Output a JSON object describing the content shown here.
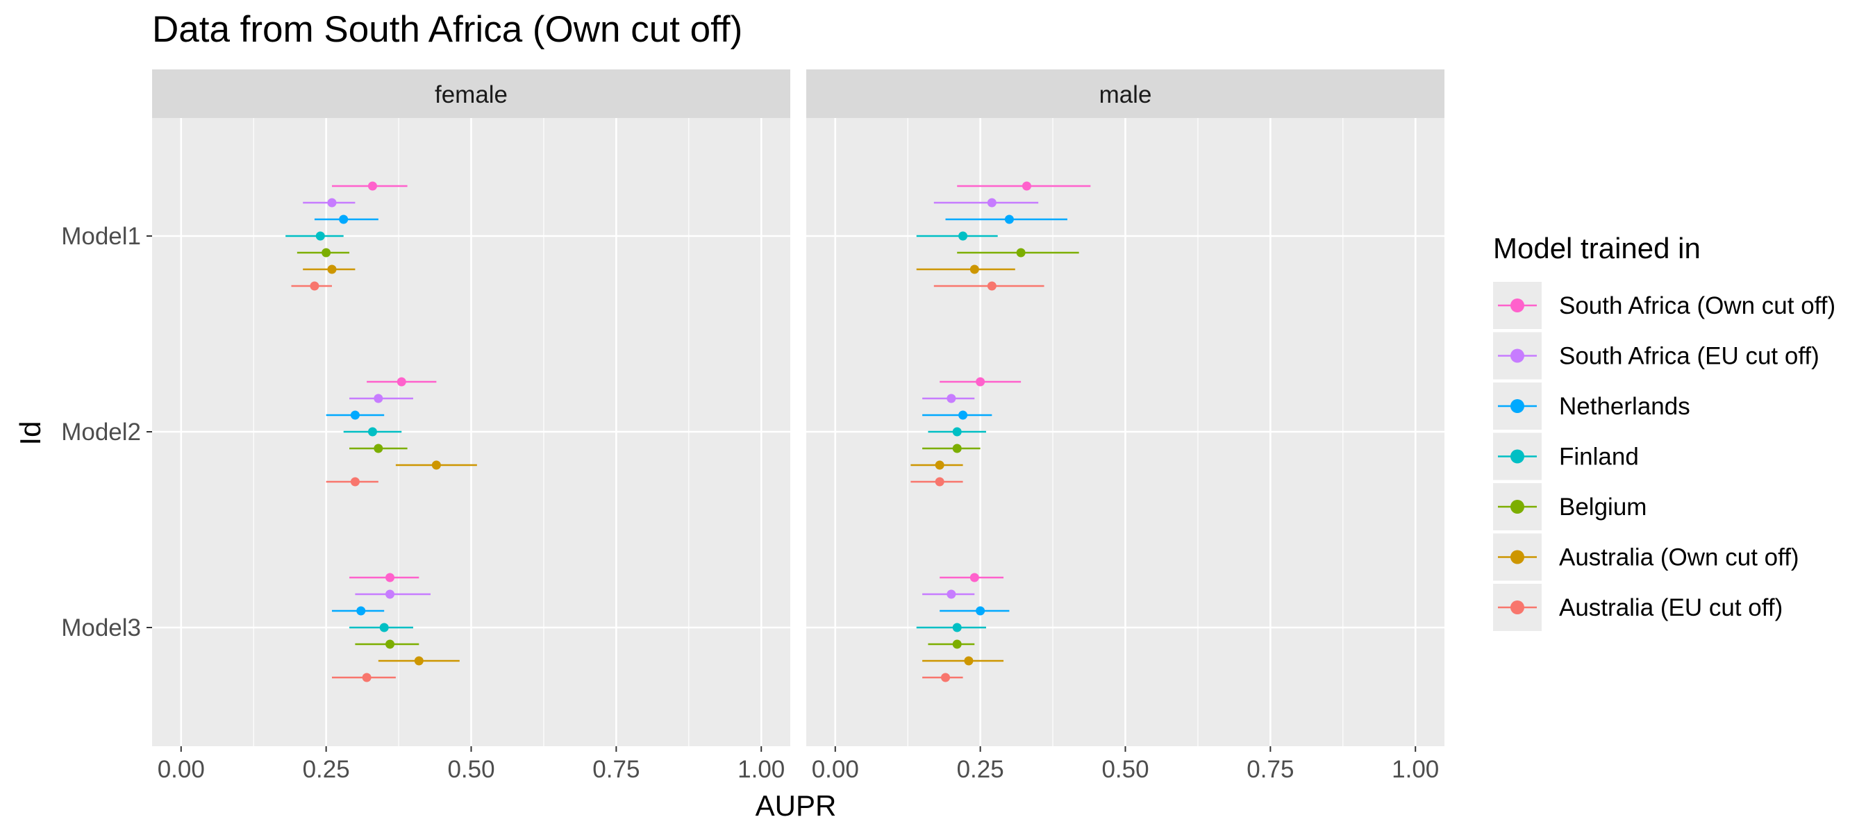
{
  "chart_data": {
    "type": "scatter",
    "subtype": "dot-and-whisker (point estimate with interval), faceted",
    "title": "Data from South Africa (Own cut off)",
    "xlabel": "AUPR",
    "ylabel": "Id",
    "xlim": [
      0,
      1
    ],
    "x_ticks": [
      "0.00",
      "0.25",
      "0.50",
      "0.75",
      "1.00"
    ],
    "y_categories": [
      "Model1",
      "Model2",
      "Model3"
    ],
    "facets": [
      "female",
      "male"
    ],
    "grid": true,
    "legend": {
      "title": "Model trained in",
      "placement": "right",
      "entries": [
        "South Africa (Own cut off)",
        "South Africa (EU cut off)",
        "Netherlands",
        "Finland",
        "Belgium",
        "Australia (Own cut off)",
        "Australia (EU cut off)"
      ]
    },
    "series": [
      {
        "name": "South Africa (Own cut off)",
        "color": "#FF61CC",
        "points": [
          {
            "facet": "female",
            "model": "Model1",
            "x": 0.33,
            "low": 0.26,
            "high": 0.39
          },
          {
            "facet": "female",
            "model": "Model2",
            "x": 0.38,
            "low": 0.32,
            "high": 0.44
          },
          {
            "facet": "female",
            "model": "Model3",
            "x": 0.36,
            "low": 0.29,
            "high": 0.41
          },
          {
            "facet": "male",
            "model": "Model1",
            "x": 0.33,
            "low": 0.21,
            "high": 0.44
          },
          {
            "facet": "male",
            "model": "Model2",
            "x": 0.25,
            "low": 0.18,
            "high": 0.32
          },
          {
            "facet": "male",
            "model": "Model3",
            "x": 0.24,
            "low": 0.18,
            "high": 0.29
          }
        ]
      },
      {
        "name": "South Africa (EU cut off)",
        "color": "#C77CFF",
        "points": [
          {
            "facet": "female",
            "model": "Model1",
            "x": 0.26,
            "low": 0.21,
            "high": 0.3
          },
          {
            "facet": "female",
            "model": "Model2",
            "x": 0.34,
            "low": 0.29,
            "high": 0.4
          },
          {
            "facet": "female",
            "model": "Model3",
            "x": 0.36,
            "low": 0.3,
            "high": 0.43
          },
          {
            "facet": "male",
            "model": "Model1",
            "x": 0.27,
            "low": 0.17,
            "high": 0.35
          },
          {
            "facet": "male",
            "model": "Model2",
            "x": 0.2,
            "low": 0.15,
            "high": 0.24
          },
          {
            "facet": "male",
            "model": "Model3",
            "x": 0.2,
            "low": 0.15,
            "high": 0.24
          }
        ]
      },
      {
        "name": "Netherlands",
        "color": "#00A9FF",
        "points": [
          {
            "facet": "female",
            "model": "Model1",
            "x": 0.28,
            "low": 0.23,
            "high": 0.34
          },
          {
            "facet": "female",
            "model": "Model2",
            "x": 0.3,
            "low": 0.25,
            "high": 0.35
          },
          {
            "facet": "female",
            "model": "Model3",
            "x": 0.31,
            "low": 0.26,
            "high": 0.35
          },
          {
            "facet": "male",
            "model": "Model1",
            "x": 0.3,
            "low": 0.19,
            "high": 0.4
          },
          {
            "facet": "male",
            "model": "Model2",
            "x": 0.22,
            "low": 0.15,
            "high": 0.27
          },
          {
            "facet": "male",
            "model": "Model3",
            "x": 0.25,
            "low": 0.18,
            "high": 0.3
          }
        ]
      },
      {
        "name": "Finland",
        "color": "#00BFC4",
        "points": [
          {
            "facet": "female",
            "model": "Model1",
            "x": 0.24,
            "low": 0.18,
            "high": 0.28
          },
          {
            "facet": "female",
            "model": "Model2",
            "x": 0.33,
            "low": 0.28,
            "high": 0.38
          },
          {
            "facet": "female",
            "model": "Model3",
            "x": 0.35,
            "low": 0.29,
            "high": 0.4
          },
          {
            "facet": "male",
            "model": "Model1",
            "x": 0.22,
            "low": 0.14,
            "high": 0.28
          },
          {
            "facet": "male",
            "model": "Model2",
            "x": 0.21,
            "low": 0.16,
            "high": 0.26
          },
          {
            "facet": "male",
            "model": "Model3",
            "x": 0.21,
            "low": 0.14,
            "high": 0.26
          }
        ]
      },
      {
        "name": "Belgium",
        "color": "#7CAE00",
        "points": [
          {
            "facet": "female",
            "model": "Model1",
            "x": 0.25,
            "low": 0.2,
            "high": 0.29
          },
          {
            "facet": "female",
            "model": "Model2",
            "x": 0.34,
            "low": 0.29,
            "high": 0.39
          },
          {
            "facet": "female",
            "model": "Model3",
            "x": 0.36,
            "low": 0.3,
            "high": 0.41
          },
          {
            "facet": "male",
            "model": "Model1",
            "x": 0.32,
            "low": 0.21,
            "high": 0.42
          },
          {
            "facet": "male",
            "model": "Model2",
            "x": 0.21,
            "low": 0.15,
            "high": 0.25
          },
          {
            "facet": "male",
            "model": "Model3",
            "x": 0.21,
            "low": 0.16,
            "high": 0.24
          }
        ]
      },
      {
        "name": "Australia (Own cut off)",
        "color": "#CD9600",
        "points": [
          {
            "facet": "female",
            "model": "Model1",
            "x": 0.26,
            "low": 0.21,
            "high": 0.3
          },
          {
            "facet": "female",
            "model": "Model2",
            "x": 0.44,
            "low": 0.37,
            "high": 0.51
          },
          {
            "facet": "female",
            "model": "Model3",
            "x": 0.41,
            "low": 0.34,
            "high": 0.48
          },
          {
            "facet": "male",
            "model": "Model1",
            "x": 0.24,
            "low": 0.14,
            "high": 0.31
          },
          {
            "facet": "male",
            "model": "Model2",
            "x": 0.18,
            "low": 0.13,
            "high": 0.22
          },
          {
            "facet": "male",
            "model": "Model3",
            "x": 0.23,
            "low": 0.15,
            "high": 0.29
          }
        ]
      },
      {
        "name": "Australia (EU cut off)",
        "color": "#F8766D",
        "points": [
          {
            "facet": "female",
            "model": "Model1",
            "x": 0.23,
            "low": 0.19,
            "high": 0.26
          },
          {
            "facet": "female",
            "model": "Model2",
            "x": 0.3,
            "low": 0.25,
            "high": 0.34
          },
          {
            "facet": "female",
            "model": "Model3",
            "x": 0.32,
            "low": 0.26,
            "high": 0.37
          },
          {
            "facet": "male",
            "model": "Model1",
            "x": 0.27,
            "low": 0.17,
            "high": 0.36
          },
          {
            "facet": "male",
            "model": "Model2",
            "x": 0.18,
            "low": 0.13,
            "high": 0.22
          },
          {
            "facet": "male",
            "model": "Model3",
            "x": 0.19,
            "low": 0.15,
            "high": 0.22
          }
        ]
      }
    ]
  }
}
